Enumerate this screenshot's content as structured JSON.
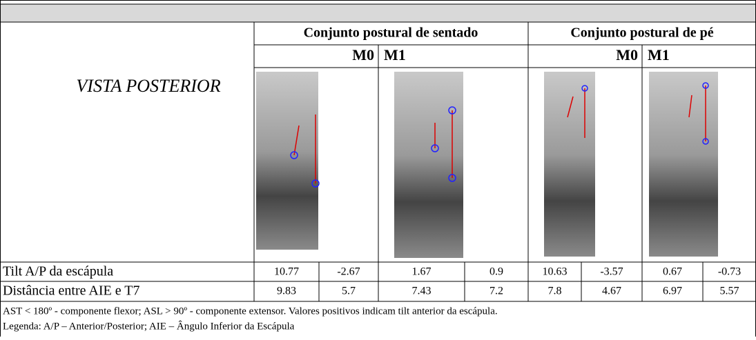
{
  "table": {
    "title": "VISTA POSTERIOR",
    "groups": [
      "Conjunto postural de sentado",
      "Conjunto postural de pé"
    ],
    "subheaders": [
      "M0",
      "M1",
      "M0",
      "M1"
    ],
    "rows": [
      {
        "label": "Tilt A/P da escápula",
        "values": [
          10.77,
          -2.67,
          1.67,
          0.9,
          10.63,
          -3.57,
          0.67,
          -0.73
        ]
      },
      {
        "label": "Distância entre AIE e T7",
        "values": [
          9.83,
          5.7,
          7.43,
          7.2,
          7.8,
          4.67,
          6.97,
          5.57
        ]
      }
    ],
    "notes": [
      "AST < 180º - componente flexor; ASL > 90º - componente extensor. Valores positivos indicam tilt anterior da escápula.",
      "Legenda: A/P – Anterior/Posterior; AIE – Ângulo Inferior da Escápula"
    ]
  }
}
